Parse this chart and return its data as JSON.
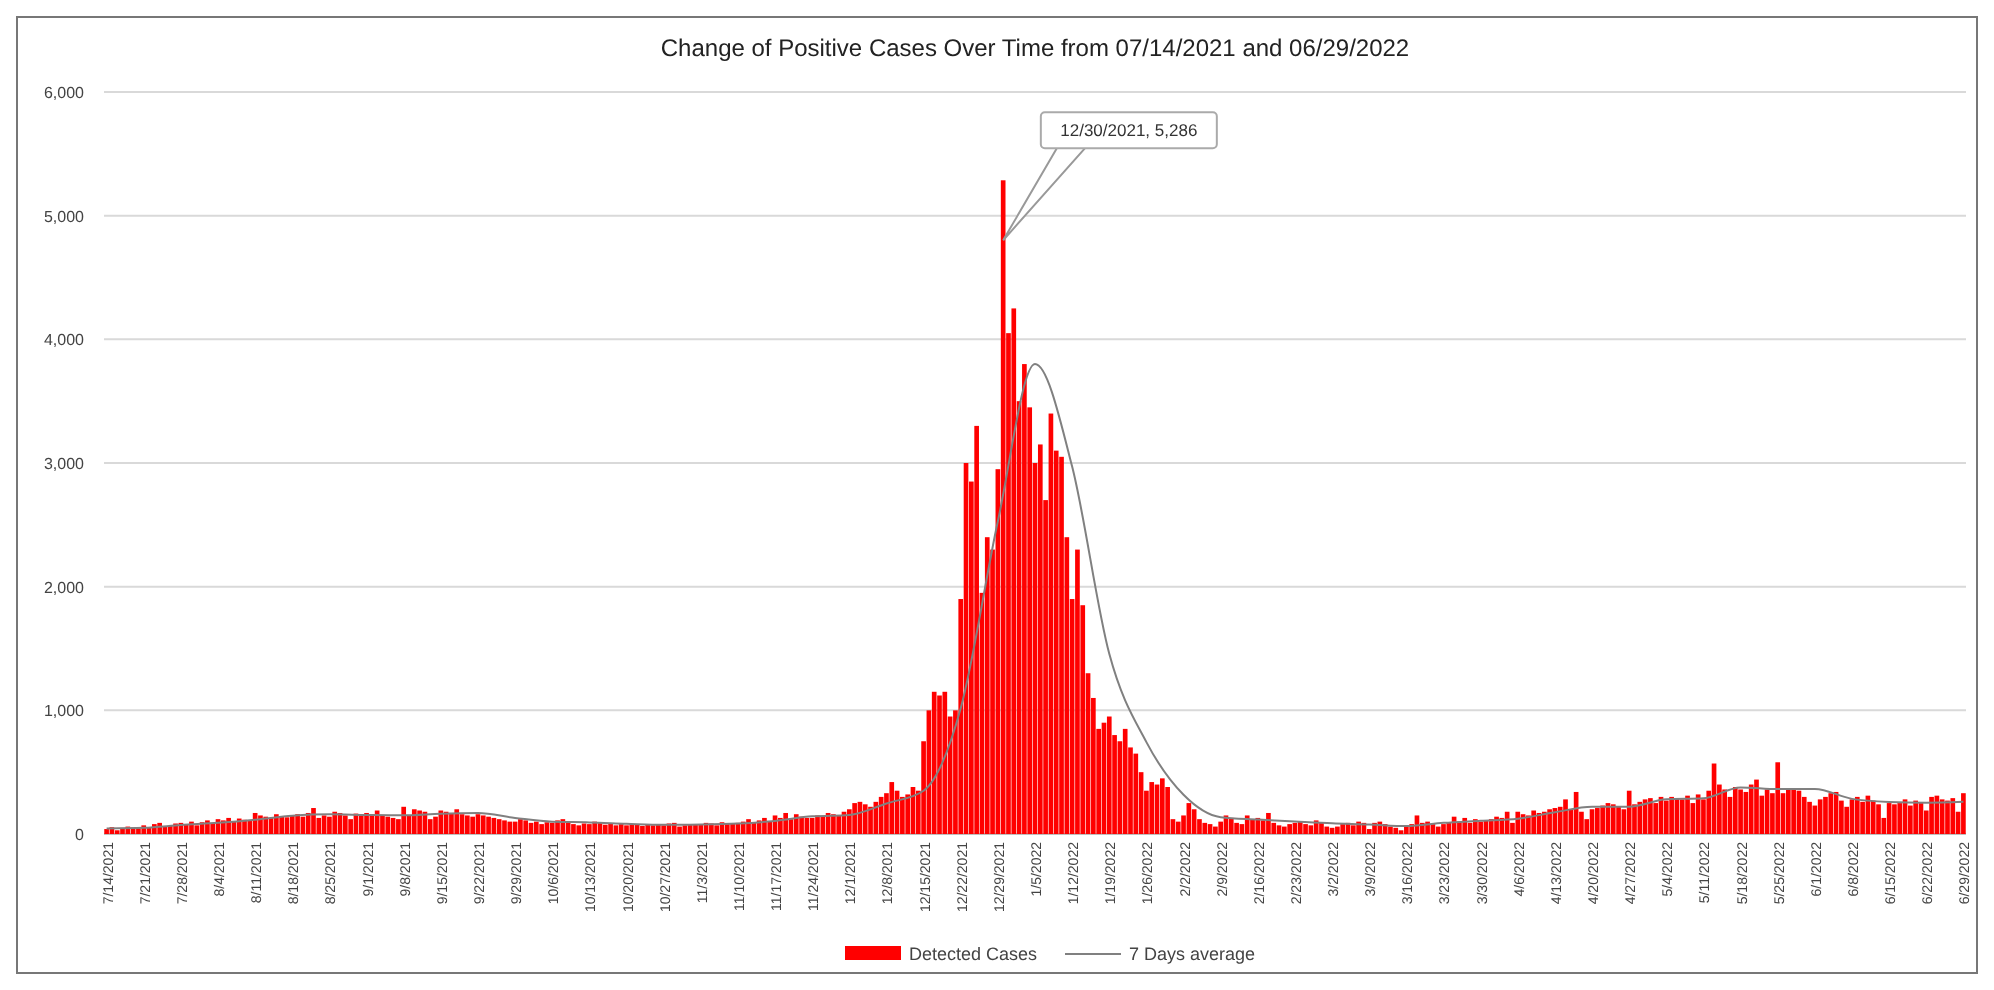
{
  "chart_data": {
    "type": "bar",
    "title": "Change of Positive Cases Over Time from 07/14/2021 and 06/29/2022",
    "categories": [
      "7/14/2021",
      null,
      null,
      null,
      null,
      null,
      null,
      "7/21/2021",
      null,
      null,
      null,
      null,
      null,
      null,
      "7/28/2021",
      null,
      null,
      null,
      null,
      null,
      null,
      "8/4/2021",
      null,
      null,
      null,
      null,
      null,
      null,
      "8/11/2021",
      null,
      null,
      null,
      null,
      null,
      null,
      "8/18/2021",
      null,
      null,
      null,
      null,
      null,
      null,
      "8/25/2021",
      null,
      null,
      null,
      null,
      null,
      null,
      "9/1/2021",
      null,
      null,
      null,
      null,
      null,
      null,
      "9/8/2021",
      null,
      null,
      null,
      null,
      null,
      null,
      "9/15/2021",
      null,
      null,
      null,
      null,
      null,
      null,
      "9/22/2021",
      null,
      null,
      null,
      null,
      null,
      null,
      "9/29/2021",
      null,
      null,
      null,
      null,
      null,
      null,
      "10/6/2021",
      null,
      null,
      null,
      null,
      null,
      null,
      "10/13/2021",
      null,
      null,
      null,
      null,
      null,
      null,
      "10/20/2021",
      null,
      null,
      null,
      null,
      null,
      null,
      "10/27/2021",
      null,
      null,
      null,
      null,
      null,
      null,
      "11/3/2021",
      null,
      null,
      null,
      null,
      null,
      null,
      "11/10/2021",
      null,
      null,
      null,
      null,
      null,
      null,
      "11/17/2021",
      null,
      null,
      null,
      null,
      null,
      null,
      "11/24/2021",
      null,
      null,
      null,
      null,
      null,
      null,
      "12/1/2021",
      null,
      null,
      null,
      null,
      null,
      null,
      "12/8/2021",
      null,
      null,
      null,
      null,
      null,
      null,
      "12/15/2021",
      null,
      null,
      null,
      null,
      null,
      null,
      "12/22/2021",
      null,
      null,
      null,
      null,
      null,
      null,
      "12/29/2021",
      null,
      null,
      null,
      null,
      null,
      null,
      "1/5/2022",
      null,
      null,
      null,
      null,
      null,
      null,
      "1/12/2022",
      null,
      null,
      null,
      null,
      null,
      null,
      "1/19/2022",
      null,
      null,
      null,
      null,
      null,
      null,
      "1/26/2022",
      null,
      null,
      null,
      null,
      null,
      null,
      "2/2/2022",
      null,
      null,
      null,
      null,
      null,
      null,
      "2/9/2022",
      null,
      null,
      null,
      null,
      null,
      null,
      "2/16/2022",
      null,
      null,
      null,
      null,
      null,
      null,
      "2/23/2022",
      null,
      null,
      null,
      null,
      null,
      null,
      "3/2/2022",
      null,
      null,
      null,
      null,
      null,
      null,
      "3/9/2022",
      null,
      null,
      null,
      null,
      null,
      null,
      "3/16/2022",
      null,
      null,
      null,
      null,
      null,
      null,
      "3/23/2022",
      null,
      null,
      null,
      null,
      null,
      null,
      "3/30/2022",
      null,
      null,
      null,
      null,
      null,
      null,
      "4/6/2022",
      null,
      null,
      null,
      null,
      null,
      null,
      "4/13/2022",
      null,
      null,
      null,
      null,
      null,
      null,
      "4/20/2022",
      null,
      null,
      null,
      null,
      null,
      null,
      "4/27/2022",
      null,
      null,
      null,
      null,
      null,
      null,
      "5/4/2022",
      null,
      null,
      null,
      null,
      null,
      null,
      "5/11/2022",
      null,
      null,
      null,
      null,
      null,
      null,
      "5/18/2022",
      null,
      null,
      null,
      null,
      null,
      null,
      "5/25/2022",
      null,
      null,
      null,
      null,
      null,
      null,
      "6/1/2022",
      null,
      null,
      null,
      null,
      null,
      null,
      "6/8/2022",
      null,
      null,
      null,
      null,
      null,
      null,
      "6/15/2022",
      null,
      null,
      null,
      null,
      null,
      null,
      "6/22/2022",
      null,
      null,
      null,
      null,
      null,
      null,
      "6/29/2022"
    ],
    "series": [
      {
        "name": "Detected Cases",
        "color": "#ff0000",
        "values": [
          40,
          55,
          30,
          45,
          60,
          50,
          45,
          70,
          55,
          80,
          90,
          60,
          65,
          85,
          90,
          80,
          100,
          70,
          95,
          110,
          85,
          120,
          110,
          130,
          100,
          125,
          115,
          105,
          170,
          150,
          140,
          130,
          160,
          145,
          135,
          150,
          160,
          140,
          170,
          210,
          130,
          150,
          140,
          180,
          170,
          150,
          120,
          165,
          155,
          170,
          160,
          190,
          150,
          140,
          130,
          120,
          220,
          150,
          200,
          190,
          180,
          120,
          140,
          190,
          180,
          170,
          200,
          160,
          150,
          140,
          160,
          150,
          140,
          130,
          120,
          110,
          100,
          100,
          120,
          110,
          90,
          100,
          80,
          95,
          90,
          110,
          120,
          100,
          80,
          70,
          85,
          80,
          100,
          90,
          75,
          85,
          70,
          80,
          70,
          80,
          75,
          65,
          80,
          70,
          75,
          70,
          85,
          90,
          60,
          70,
          80,
          75,
          80,
          90,
          85,
          70,
          95,
          80,
          85,
          90,
          100,
          120,
          95,
          110,
          130,
          100,
          150,
          130,
          170,
          120,
          160,
          140,
          130,
          130,
          150,
          140,
          170,
          160,
          150,
          180,
          200,
          250,
          260,
          240,
          220,
          260,
          300,
          330,
          420,
          350,
          300,
          320,
          380,
          350,
          750,
          1000,
          1150,
          1120,
          1150,
          950,
          1000,
          1900,
          3000,
          2850,
          3300,
          1950,
          2400,
          2300,
          2950,
          5286,
          4050,
          4250,
          3500,
          3800,
          3450,
          3000,
          3150,
          2700,
          3400,
          3100,
          3050,
          2400,
          1900,
          2300,
          1850,
          1300,
          1100,
          850,
          900,
          950,
          800,
          750,
          850,
          700,
          650,
          500,
          350,
          420,
          400,
          450,
          380,
          120,
          100,
          150,
          250,
          200,
          120,
          90,
          80,
          60,
          100,
          150,
          130,
          90,
          80,
          150,
          120,
          130,
          110,
          170,
          90,
          70,
          60,
          80,
          90,
          100,
          80,
          70,
          110,
          90,
          60,
          50,
          60,
          80,
          90,
          70,
          100,
          90,
          40,
          90,
          100,
          80,
          60,
          50,
          30,
          70,
          80,
          150,
          90,
          100,
          80,
          60,
          80,
          90,
          140,
          100,
          130,
          90,
          120,
          100,
          110,
          120,
          140,
          130,
          180,
          90,
          180,
          160,
          150,
          190,
          170,
          180,
          200,
          210,
          220,
          280,
          200,
          340,
          180,
          120,
          200,
          210,
          230,
          250,
          240,
          220,
          200,
          350,
          240,
          260,
          280,
          290,
          250,
          300,
          270,
          300,
          290,
          280,
          310,
          250,
          320,
          280,
          350,
          570,
          400,
          360,
          300,
          380,
          360,
          340,
          400,
          440,
          310,
          360,
          330,
          580,
          330,
          370,
          360,
          350,
          300,
          260,
          230,
          280,
          300,
          330,
          340,
          270,
          220,
          280,
          300,
          260,
          310,
          270,
          240,
          130,
          250,
          240,
          250,
          280,
          230,
          270,
          250,
          190,
          300,
          310,
          280,
          270,
          290,
          180,
          330
        ]
      },
      {
        "name": "7 Days average",
        "type": "line",
        "color": "#808080",
        "values": [
          45,
          null,
          null,
          null,
          null,
          null,
          null,
          50,
          null,
          null,
          null,
          null,
          null,
          null,
          72,
          null,
          null,
          null,
          null,
          null,
          null,
          90,
          null,
          null,
          null,
          null,
          null,
          null,
          115,
          null,
          null,
          null,
          null,
          null,
          null,
          147,
          null,
          null,
          null,
          null,
          null,
          null,
          159,
          null,
          null,
          null,
          null,
          null,
          null,
          154,
          null,
          null,
          null,
          null,
          null,
          null,
          151,
          null,
          null,
          null,
          null,
          null,
          null,
          164,
          null,
          null,
          null,
          null,
          null,
          null,
          169,
          null,
          null,
          null,
          null,
          null,
          null,
          130,
          null,
          null,
          null,
          null,
          null,
          null,
          99,
          null,
          null,
          null,
          null,
          null,
          null,
          94,
          null,
          null,
          null,
          null,
          null,
          null,
          83,
          null,
          null,
          null,
          null,
          null,
          null,
          74,
          null,
          null,
          null,
          null,
          null,
          null,
          76,
          null,
          null,
          null,
          null,
          null,
          null,
          84,
          null,
          null,
          null,
          null,
          null,
          null,
          106,
          null,
          null,
          null,
          null,
          null,
          null,
          143,
          null,
          null,
          null,
          null,
          null,
          null,
          154,
          null,
          null,
          null,
          null,
          null,
          null,
          247,
          null,
          null,
          null,
          null,
          null,
          null,
          350,
          null,
          null,
          null,
          null,
          null,
          null,
          1017,
          null,
          null,
          null,
          null,
          null,
          null,
          2529,
          null,
          null,
          null,
          null,
          null,
          null,
          3800,
          null,
          null,
          null,
          null,
          null,
          null,
          2971,
          null,
          null,
          null,
          null,
          null,
          null,
          1457,
          null,
          null,
          null,
          null,
          null,
          null,
          743,
          null,
          null,
          null,
          null,
          null,
          null,
          317,
          null,
          null,
          null,
          null,
          null,
          null,
          136,
          null,
          null,
          null,
          null,
          null,
          null,
          117,
          null,
          null,
          null,
          null,
          null,
          null,
          101,
          null,
          null,
          null,
          null,
          null,
          null,
          86,
          null,
          null,
          null,
          null,
          null,
          null,
          77,
          null,
          null,
          null,
          null,
          null,
          null,
          64,
          null,
          null,
          null,
          null,
          null,
          null,
          90,
          null,
          null,
          null,
          null,
          null,
          null,
          107,
          null,
          null,
          null,
          null,
          null,
          null,
          124,
          null,
          null,
          null,
          null,
          null,
          null,
          176,
          null,
          null,
          null,
          null,
          null,
          null,
          221,
          null,
          null,
          null,
          null,
          null,
          null,
          221,
          null,
          null,
          null,
          null,
          null,
          null,
          281,
          null,
          null,
          null,
          null,
          null,
          null,
          289,
          null,
          null,
          null,
          null,
          null,
          null,
          377,
          null,
          null,
          null,
          null,
          null,
          null,
          363,
          null,
          null,
          null,
          null,
          null,
          null,
          364,
          null,
          null,
          null,
          null,
          null,
          null,
          284,
          null,
          null,
          null,
          null,
          null,
          null,
          259,
          null,
          null,
          null,
          null,
          null,
          null,
          253,
          null,
          null,
          null,
          null,
          null,
          null,
          260
        ]
      }
    ],
    "ylim": [
      0,
      6000
    ],
    "yticks": [
      0,
      {
        "value": 1000,
        "label": "1,000"
      },
      {
        "value": 2000,
        "label": "2,000"
      },
      {
        "value": 3000,
        "label": "3,000"
      },
      {
        "value": 4000,
        "label": "4,000"
      },
      {
        "value": 5000,
        "label": "5,000"
      },
      {
        "value": 6000,
        "label": "6,000"
      }
    ],
    "grid": "y",
    "legend": "bottom",
    "annotations": [
      "12/30/2021, 5,286"
    ]
  }
}
